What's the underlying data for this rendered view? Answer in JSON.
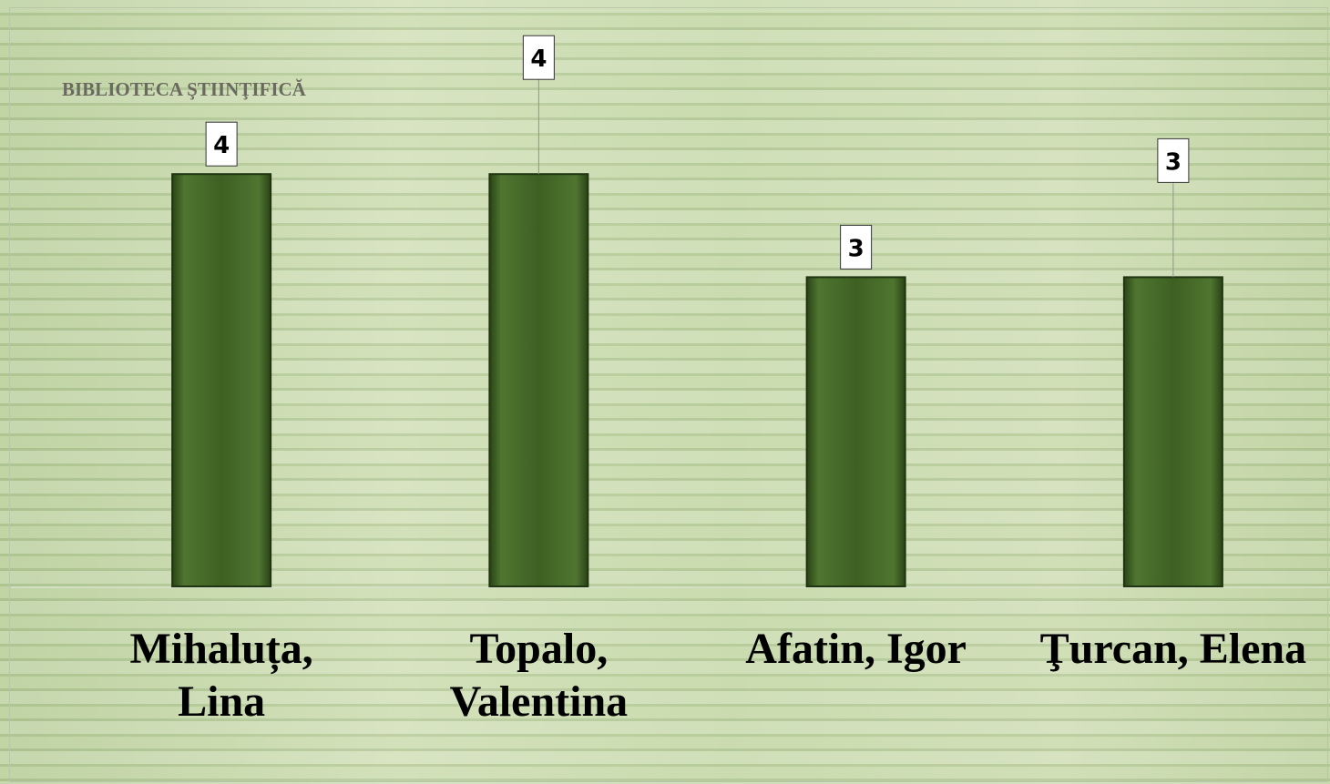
{
  "chart_data": {
    "type": "bar",
    "title": "BIBLIOTECA ŞTIINŢIFICĂ",
    "categories": [
      "Mihaluța, Lina",
      "Topalo, Valentina",
      "Afatin, Igor",
      "Ţurcan, Elena"
    ],
    "values": [
      4,
      4,
      3,
      3
    ],
    "color": "#3e6022",
    "ylim": [
      0,
      5
    ]
  }
}
